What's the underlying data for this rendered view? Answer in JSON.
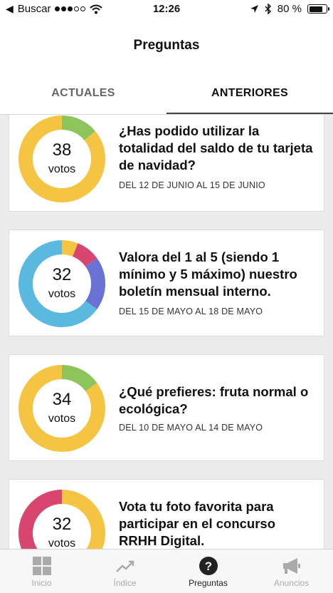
{
  "status_bar": {
    "carrier": "Buscar",
    "time": "12:26",
    "battery": "80 %",
    "battery_level": 0.8,
    "signal_bars": 3
  },
  "header": {
    "title": "Preguntas"
  },
  "tabs": [
    {
      "label": "ACTUALES",
      "active": false
    },
    {
      "label": "ANTERIORES",
      "active": true
    }
  ],
  "colors": {
    "yellow": "#F5C443",
    "green": "#8DC45C",
    "blue": "#5BB8DF",
    "purple": "#6B72D6",
    "red": "#D8456E"
  },
  "questions": [
    {
      "votes": "38",
      "votes_label": "votos",
      "title": "¿Has podido utilizar la totalidad del saldo de tu tarjeta de navidad?",
      "date": "DEL 12 DE JUNIO AL 15 DE JUNIO",
      "segments": [
        {
          "color": "green",
          "fraction": 0.14
        },
        {
          "color": "yellow",
          "fraction": 0.86
        }
      ]
    },
    {
      "votes": "32",
      "votes_label": "votos",
      "title": "Valora del 1 al 5 (siendo 1 mínimo y 5 máximo) nuestro boletín mensual interno.",
      "date": "DEL 15 DE MAYO AL 18 DE MAYO",
      "segments": [
        {
          "color": "yellow",
          "fraction": 0.06
        },
        {
          "color": "red",
          "fraction": 0.09
        },
        {
          "color": "purple",
          "fraction": 0.2
        },
        {
          "color": "blue",
          "fraction": 0.65
        }
      ]
    },
    {
      "votes": "34",
      "votes_label": "votos",
      "title": "¿Qué prefieres: fruta normal o ecológica?",
      "date": "DEL 10 DE MAYO AL 14 DE MAYO",
      "segments": [
        {
          "color": "green",
          "fraction": 0.15
        },
        {
          "color": "yellow",
          "fraction": 0.85
        }
      ]
    },
    {
      "votes": "32",
      "votes_label": "votos",
      "title": "Vota tu foto favorita para participar en el concurso RRHH Digital.",
      "date": "",
      "segments": [
        {
          "color": "yellow",
          "fraction": 0.5
        },
        {
          "color": "red",
          "fraction": 0.5
        }
      ]
    }
  ],
  "bottom_nav": [
    {
      "label": "Inicio",
      "icon": "grid-icon",
      "active": false
    },
    {
      "label": "Índice",
      "icon": "trend-icon",
      "active": false
    },
    {
      "label": "Preguntas",
      "icon": "question-icon",
      "active": true
    },
    {
      "label": "Anuncios",
      "icon": "megaphone-icon",
      "active": false
    }
  ]
}
